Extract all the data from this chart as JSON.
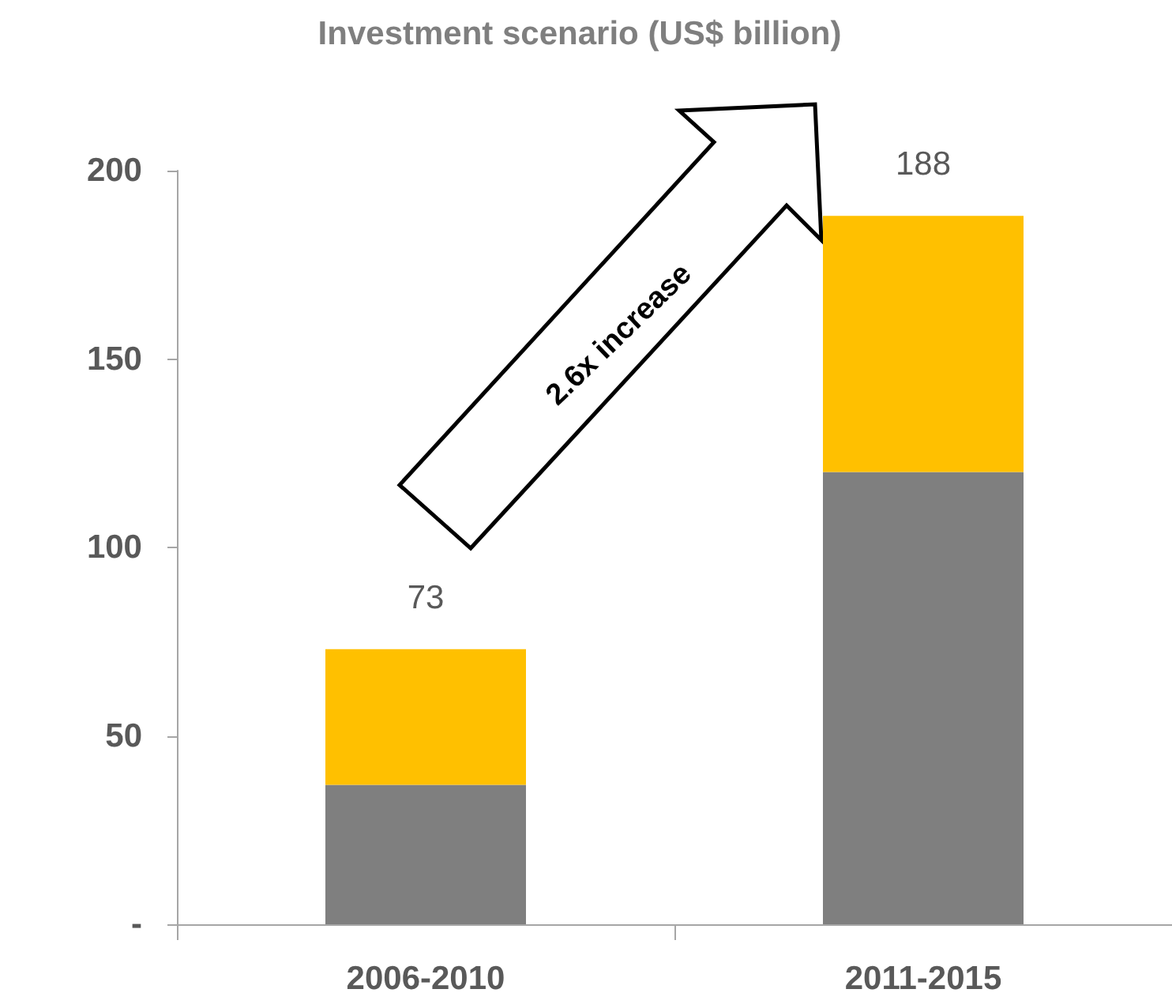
{
  "chart_data": {
    "type": "bar",
    "title": "Investment scenario (US$ billion)",
    "categories": [
      "2006-2010",
      "2011-2015"
    ],
    "stacked": true,
    "series": [
      {
        "color": "#7f7f7f",
        "values": [
          37,
          120
        ]
      },
      {
        "color": "#ffc000",
        "values": [
          36,
          68
        ]
      }
    ],
    "totals": [
      "73",
      "188"
    ],
    "ylim": [
      0,
      200
    ],
    "yticks": [
      {
        "value": 0,
        "label": "-"
      },
      50,
      100,
      150,
      200
    ],
    "grid": false,
    "annotations": [
      "2.6x increase"
    ]
  }
}
